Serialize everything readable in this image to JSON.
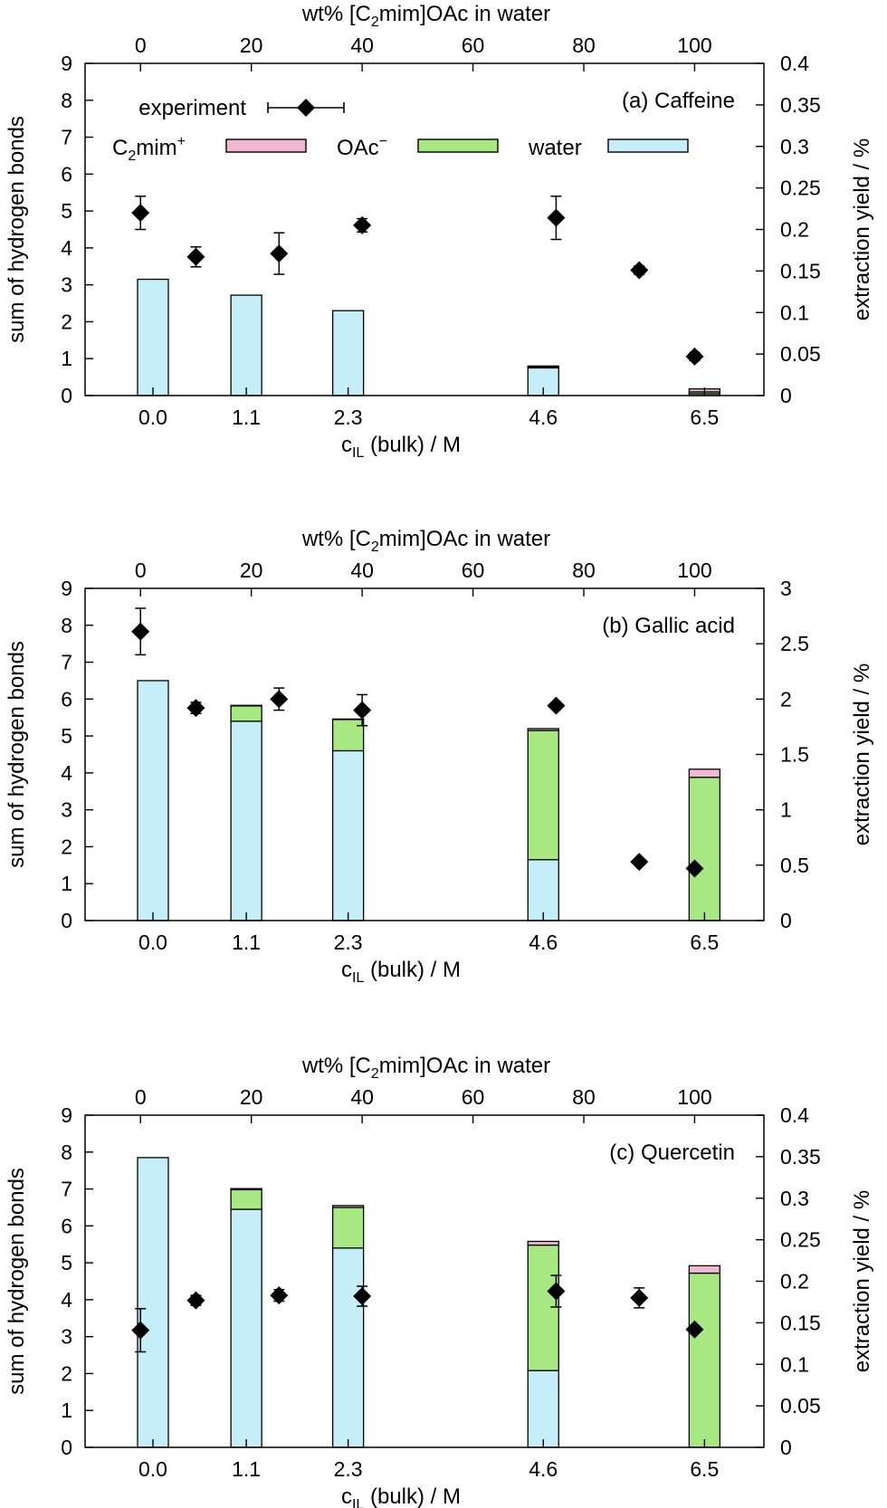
{
  "figure": {
    "bar_colors": {
      "cation": "#f0b8d2",
      "anion": "#a8e882",
      "water": "#c6eefa"
    },
    "legend": {
      "experiment": "experiment",
      "cation_main": "C",
      "cation_sub": "2",
      "cation_rest": "mim",
      "cation_sup": "+",
      "anion_main": "OAc",
      "anion_sup": "−",
      "water": "water"
    }
  },
  "chart_data": [
    {
      "type": "bar",
      "title": "(a) Caffeine",
      "top_xlabel_pre": "wt% [C",
      "top_xlabel_sub": "2",
      "top_xlabel_post": "mim]OAc in water",
      "top_ticks": [
        "0",
        "20",
        "40",
        "60",
        "80",
        "100"
      ],
      "xlabel_main": "c",
      "xlabel_sub": "IL",
      "xlabel_post": " (bulk) / M",
      "categories": [
        "0.0",
        "1.1",
        "2.3",
        "4.6",
        "6.5"
      ],
      "ylabel": "sum of hydrogen bonds",
      "ylim": [
        0,
        9
      ],
      "y_ticks": [
        "0",
        "1",
        "2",
        "3",
        "4",
        "5",
        "6",
        "7",
        "8",
        "9"
      ],
      "y2label": "extraction yield / %",
      "y2lim": [
        0,
        0.4
      ],
      "y2_ticks": [
        "0",
        "0.05",
        "0.1",
        "0.15",
        "0.2",
        "0.25",
        "0.3",
        "0.35",
        "0.4"
      ],
      "series": [
        {
          "name": "water",
          "values": [
            3.15,
            2.72,
            2.3,
            0.75,
            0.05
          ]
        },
        {
          "name": "OAc−",
          "values": [
            0,
            0,
            0,
            0.03,
            0.05
          ]
        },
        {
          "name": "C2mim+",
          "values": [
            0,
            0,
            0,
            0.02,
            0.08
          ]
        }
      ],
      "experiment": {
        "wt": [
          0,
          10,
          25,
          40,
          75,
          90,
          100
        ],
        "yield": [
          0.22,
          0.167,
          0.171,
          0.205,
          0.214,
          0.151,
          0.047
        ],
        "err": [
          0.02,
          0.012,
          0.025,
          0.008,
          0.026,
          0.005,
          0.005
        ]
      }
    },
    {
      "type": "bar",
      "title": "(b) Gallic acid",
      "top_xlabel_pre": "wt% [C",
      "top_xlabel_sub": "2",
      "top_xlabel_post": "mim]OAc in water",
      "top_ticks": [
        "0",
        "20",
        "40",
        "60",
        "80",
        "100"
      ],
      "xlabel_main": "c",
      "xlabel_sub": "IL",
      "xlabel_post": " (bulk) / M",
      "categories": [
        "0.0",
        "1.1",
        "2.3",
        "4.6",
        "6.5"
      ],
      "ylabel": "sum of hydrogen bonds",
      "ylim": [
        0,
        9
      ],
      "y_ticks": [
        "0",
        "1",
        "2",
        "3",
        "4",
        "5",
        "6",
        "7",
        "8",
        "9"
      ],
      "y2label": "extraction yield / %",
      "y2lim": [
        0,
        3
      ],
      "y2_ticks": [
        "0",
        "0.5",
        "1",
        "1.5",
        "2",
        "2.5",
        "3"
      ],
      "series": [
        {
          "name": "water",
          "values": [
            6.5,
            5.4,
            4.6,
            1.65,
            0
          ]
        },
        {
          "name": "OAc−",
          "values": [
            0,
            0.42,
            0.85,
            3.5,
            3.88
          ]
        },
        {
          "name": "C2mim+",
          "values": [
            0,
            0.01,
            0.01,
            0.05,
            0.22
          ]
        }
      ],
      "experiment": {
        "wt": [
          0,
          10,
          25,
          40,
          75,
          90,
          100
        ],
        "yield": [
          2.61,
          1.92,
          2.0,
          1.9,
          1.94,
          0.53,
          0.47
        ],
        "err": [
          0.21,
          0.05,
          0.1,
          0.14,
          0.03,
          0.02,
          0.02
        ]
      }
    },
    {
      "type": "bar",
      "title": "(c) Quercetin",
      "top_xlabel_pre": "wt% [C",
      "top_xlabel_sub": "2",
      "top_xlabel_post": "mim]OAc in water",
      "top_ticks": [
        "0",
        "20",
        "40",
        "60",
        "80",
        "100"
      ],
      "xlabel_main": "c",
      "xlabel_sub": "IL",
      "xlabel_post": " (bulk) / M",
      "categories": [
        "0.0",
        "1.1",
        "2.3",
        "4.6",
        "6.5"
      ],
      "ylabel": "sum of hydrogen bonds",
      "ylim": [
        0,
        9
      ],
      "y_ticks": [
        "0",
        "1",
        "2",
        "3",
        "4",
        "5",
        "6",
        "7",
        "8",
        "9"
      ],
      "y2label": "extraction yield / %",
      "y2lim": [
        0,
        0.4
      ],
      "y2_ticks": [
        "0",
        "0.05",
        "0.1",
        "0.15",
        "0.2",
        "0.25",
        "0.3",
        "0.35",
        "0.4"
      ],
      "series": [
        {
          "name": "water",
          "values": [
            7.85,
            6.45,
            5.4,
            2.08,
            0
          ]
        },
        {
          "name": "OAc−",
          "values": [
            0,
            0.53,
            1.1,
            3.4,
            4.72
          ]
        },
        {
          "name": "C2mim+",
          "values": [
            0,
            0.03,
            0.05,
            0.1,
            0.2
          ]
        }
      ],
      "experiment": {
        "wt": [
          0,
          10,
          25,
          40,
          75,
          90,
          100
        ],
        "yield": [
          0.141,
          0.177,
          0.183,
          0.182,
          0.188,
          0.18,
          0.142
        ],
        "err": [
          0.026,
          0.006,
          0.007,
          0.012,
          0.019,
          0.012,
          0.003
        ]
      }
    }
  ]
}
